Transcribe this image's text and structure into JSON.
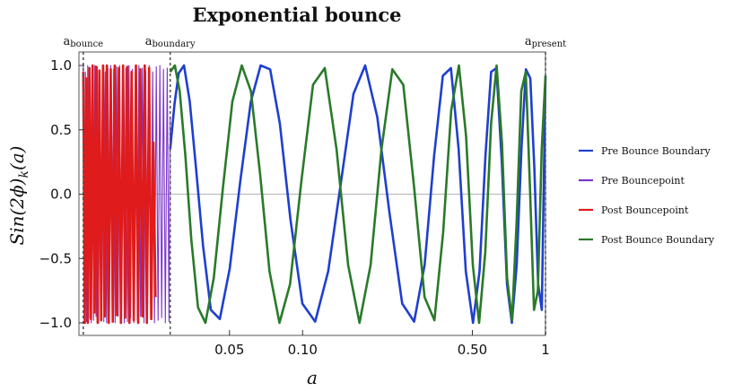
{
  "chart_data": {
    "type": "line",
    "title": "Exponential bounce",
    "xlabel": "a",
    "ylabel": "Sin(2ϕ)_k(a)",
    "x_scale": "log",
    "xlim": [
      0.012,
      1.0
    ],
    "ylim": [
      -1.0,
      1.0
    ],
    "x_ticks": [
      {
        "value": 0.05,
        "label": "0.05"
      },
      {
        "value": 0.1,
        "label": "0.10"
      },
      {
        "value": 0.5,
        "label": "0.50"
      },
      {
        "value": 1.0,
        "label": "1"
      }
    ],
    "y_ticks": [
      {
        "value": 1.0,
        "label": "1.0"
      },
      {
        "value": 0.5,
        "label": "0.5"
      },
      {
        "value": 0.0,
        "label": "0.0"
      },
      {
        "value": -0.5,
        "label": "−0.5"
      },
      {
        "value": -1.0,
        "label": "−1.0"
      }
    ],
    "markers": [
      {
        "x": 0.0125,
        "label": "a",
        "subscript": "bounce"
      },
      {
        "x": 0.0285,
        "label": "a",
        "subscript": "boundary"
      },
      {
        "x": 1.0,
        "label": "a",
        "subscript": "present"
      }
    ],
    "legend_position": "right",
    "series": [
      {
        "name": "Pre Bounce Boundary",
        "color": "#1f3fcf",
        "x": [
          0.0285,
          0.0297,
          0.0309,
          0.0325,
          0.0343,
          0.0364,
          0.0389,
          0.0419,
          0.0456,
          0.0501,
          0.0554,
          0.0612,
          0.0672,
          0.0735,
          0.0806,
          0.0892,
          0.0998,
          0.1127,
          0.1275,
          0.144,
          0.162,
          0.181,
          0.203,
          0.228,
          0.257,
          0.288,
          0.318,
          0.348,
          0.378,
          0.408,
          0.439,
          0.47,
          0.503,
          0.535,
          0.566,
          0.597,
          0.628,
          0.661,
          0.694,
          0.727,
          0.761,
          0.796,
          0.831,
          0.866,
          0.9,
          0.933,
          0.966,
          1.0
        ],
        "y": [
          0.35,
          0.7,
          0.94,
          1.0,
          0.72,
          0.2,
          -0.4,
          -0.9,
          -0.97,
          -0.58,
          0.1,
          0.72,
          1.0,
          0.97,
          0.55,
          -0.2,
          -0.85,
          -0.99,
          -0.6,
          0.1,
          0.78,
          1.0,
          0.6,
          -0.15,
          -0.85,
          -0.99,
          -0.55,
          0.3,
          0.92,
          0.98,
          0.35,
          -0.6,
          -1.0,
          -0.6,
          0.3,
          0.95,
          0.98,
          0.25,
          -0.7,
          -1.0,
          -0.55,
          0.35,
          0.97,
          0.9,
          0.2,
          -0.7,
          -0.9,
          0.92
        ]
      },
      {
        "name": "Pre Bouncepoint",
        "color": "#7a35c9",
        "x": [
          0.0125,
          0.01263,
          0.01276,
          0.0129,
          0.01304,
          0.01318,
          0.01333,
          0.01348,
          0.01363,
          0.01379,
          0.01395,
          0.01411,
          0.01428,
          0.01445,
          0.01463,
          0.01481,
          0.015,
          0.01519,
          0.01539,
          0.01559,
          0.0158,
          0.01601,
          0.01623,
          0.01645,
          0.01668,
          0.01691,
          0.01715,
          0.0174,
          0.01765,
          0.01791,
          0.01817,
          0.01844,
          0.01872,
          0.019,
          0.01929,
          0.01959,
          0.01989,
          0.0202,
          0.02052,
          0.02085,
          0.02118,
          0.02152,
          0.02187,
          0.02223,
          0.0226,
          0.02297,
          0.02335,
          0.02374,
          0.02414,
          0.02455,
          0.02497,
          0.0254,
          0.02584,
          0.02629,
          0.02675,
          0.02722,
          0.0277,
          0.02819,
          0.0285
        ],
        "y": [
          1.0,
          -0.98,
          0.95,
          -0.99,
          1.0,
          -0.96,
          0.98,
          -1.0,
          0.97,
          -0.98,
          1.0,
          -0.95,
          0.99,
          -1.0,
          0.96,
          -0.97,
          1.0,
          -0.99,
          0.95,
          -1.0,
          0.98,
          -0.96,
          1.0,
          -0.98,
          0.97,
          -1.0,
          0.99,
          -0.95,
          1.0,
          -0.97,
          0.96,
          -1.0,
          0.98,
          -0.99,
          1.0,
          -0.96,
          0.97,
          -1.0,
          0.99,
          -0.98,
          1.0,
          -0.95,
          0.98,
          -1.0,
          0.96,
          -0.99,
          1.0,
          -0.97,
          0.95,
          -1.0,
          0.99,
          -0.98,
          1.0,
          -0.96,
          0.97,
          -1.0,
          0.98,
          -0.99,
          0.6
        ]
      },
      {
        "name": "Post Bouncepoint",
        "color": "#e01b1b",
        "x": [
          0.0125,
          0.01268,
          0.01286,
          0.01305,
          0.01325,
          0.01345,
          0.01366,
          0.01388,
          0.0141,
          0.01433,
          0.01457,
          0.01482,
          0.01508,
          0.01535,
          0.01563,
          0.01592,
          0.01622,
          0.01653,
          0.01685,
          0.01718,
          0.01752,
          0.01787,
          0.01823,
          0.0186,
          0.01898,
          0.01937,
          0.01977,
          0.02018,
          0.0206,
          0.02103,
          0.02147,
          0.02192,
          0.02238,
          0.02285,
          0.02333,
          0.02382,
          0.0243,
          0.02478
        ],
        "y": [
          0.95,
          -1.0,
          0.9,
          -1.0,
          0.98,
          -0.97,
          1.0,
          -0.92,
          0.99,
          -1.0,
          0.96,
          -0.98,
          1.0,
          -0.95,
          1.0,
          -1.0,
          0.97,
          -0.99,
          1.0,
          -0.94,
          0.98,
          -1.0,
          1.0,
          -0.96,
          0.99,
          -1.0,
          0.95,
          -0.98,
          1.0,
          -1.0,
          0.97,
          -0.95,
          1.0,
          -1.0,
          0.98,
          -0.97,
          0.4,
          -0.8
        ]
      },
      {
        "name": "Post Bounce Boundary",
        "color": "#2a7a2a",
        "x": [
          0.0285,
          0.0298,
          0.0312,
          0.0329,
          0.0348,
          0.0371,
          0.0398,
          0.0431,
          0.047,
          0.0514,
          0.0562,
          0.0613,
          0.0669,
          0.0731,
          0.0803,
          0.0888,
          0.0988,
          0.1104,
          0.1234,
          0.1379,
          0.154,
          0.1715,
          0.1905,
          0.2112,
          0.2341,
          0.2597,
          0.2878,
          0.3178,
          0.349,
          0.379,
          0.409,
          0.44,
          0.471,
          0.502,
          0.533,
          0.565,
          0.597,
          0.629,
          0.662,
          0.695,
          0.728,
          0.761,
          0.795,
          0.829,
          0.863,
          0.897,
          0.93,
          0.965,
          1.0
        ],
        "y": [
          0.95,
          1.0,
          0.8,
          0.3,
          -0.35,
          -0.88,
          -1.0,
          -0.65,
          0.05,
          0.72,
          1.0,
          0.8,
          0.15,
          -0.6,
          -1.0,
          -0.7,
          0.1,
          0.85,
          0.98,
          0.35,
          -0.55,
          -1.0,
          -0.55,
          0.35,
          0.97,
          0.85,
          0.05,
          -0.8,
          -0.98,
          -0.3,
          0.65,
          1.0,
          0.45,
          -0.55,
          -1.0,
          -0.45,
          0.55,
          1.0,
          0.4,
          -0.65,
          -0.98,
          -0.2,
          0.8,
          0.95,
          0.05,
          -0.9,
          -0.75,
          0.35,
          0.92
        ]
      }
    ]
  }
}
